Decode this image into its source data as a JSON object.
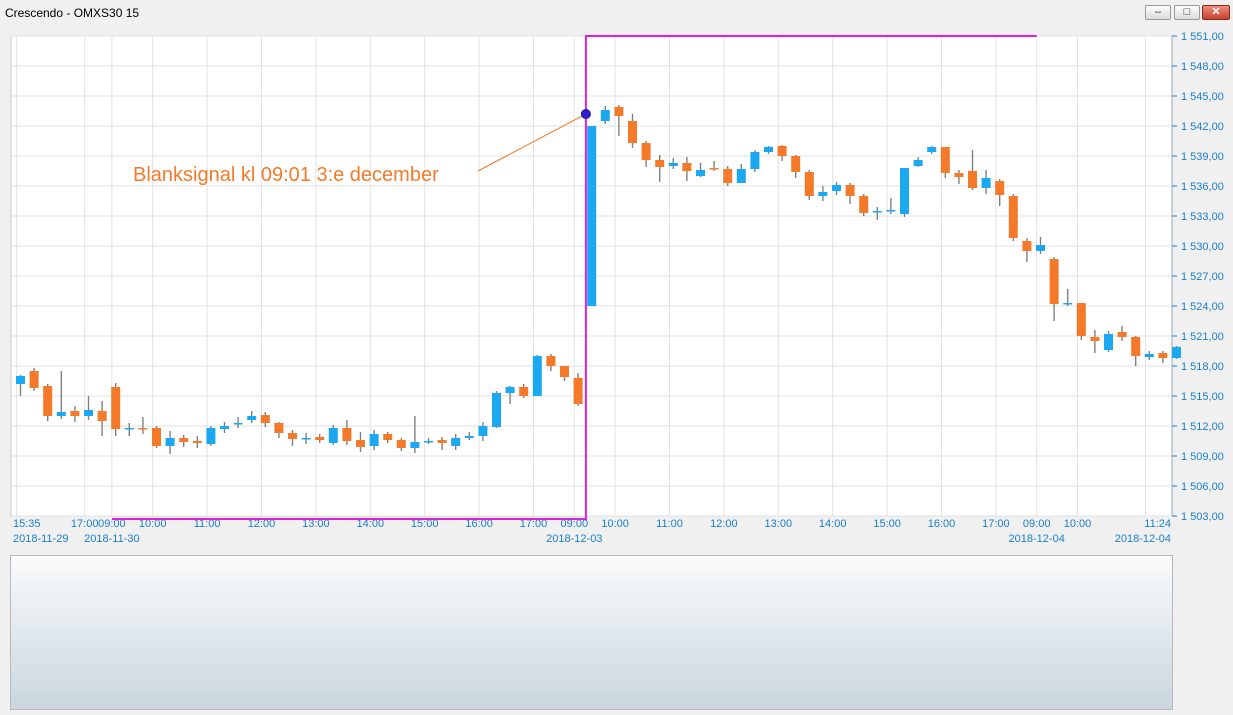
{
  "window": {
    "title": "Crescendo - OMXS30  15",
    "minimize_label": "–",
    "maximize_label": "□",
    "close_label": "✕"
  },
  "colors": {
    "up": "#1aa8f0",
    "down": "#f47a2a",
    "wick": "#808080",
    "marker_line": "#e020d8",
    "annotation": "#f47a2a",
    "axis_text": "#1a7fc8",
    "grid": "#e2e2e2"
  },
  "chart_data": {
    "type": "candlestick",
    "ylim": [
      1503,
      1551
    ],
    "y_ticks": [
      "1 503,00",
      "1 506,00",
      "1 509,00",
      "1 512,00",
      "1 515,00",
      "1 518,00",
      "1 521,00",
      "1 524,00",
      "1 527,00",
      "1 530,00",
      "1 533,00",
      "1 536,00",
      "1 539,00",
      "1 542,00",
      "1 545,00",
      "1 548,00",
      "1 551,00"
    ],
    "x_ticks": [
      {
        "time": "15:35",
        "date": "2018-11-29",
        "bar": 0
      },
      {
        "time": "17:00",
        "date": "",
        "bar": 5
      },
      {
        "time": "09:00",
        "date": "2018-11-30",
        "bar": 7
      },
      {
        "time": "10:00",
        "date": "",
        "bar": 10
      },
      {
        "time": "11:00",
        "date": "",
        "bar": 14
      },
      {
        "time": "12:00",
        "date": "",
        "bar": 18
      },
      {
        "time": "13:00",
        "date": "",
        "bar": 22
      },
      {
        "time": "14:00",
        "date": "",
        "bar": 26
      },
      {
        "time": "15:00",
        "date": "",
        "bar": 30
      },
      {
        "time": "16:00",
        "date": "",
        "bar": 34
      },
      {
        "time": "17:00",
        "date": "",
        "bar": 38
      },
      {
        "time": "09:00",
        "date": "2018-12-03",
        "bar": 41
      },
      {
        "time": "10:00",
        "date": "",
        "bar": 44
      },
      {
        "time": "11:00",
        "date": "",
        "bar": 48
      },
      {
        "time": "12:00",
        "date": "",
        "bar": 52
      },
      {
        "time": "13:00",
        "date": "",
        "bar": 56
      },
      {
        "time": "14:00",
        "date": "",
        "bar": 60
      },
      {
        "time": "15:00",
        "date": "",
        "bar": 64
      },
      {
        "time": "16:00",
        "date": "",
        "bar": 68
      },
      {
        "time": "17:00",
        "date": "",
        "bar": 72
      },
      {
        "time": "09:00",
        "date": "2018-12-04",
        "bar": 75
      },
      {
        "time": "10:00",
        "date": "",
        "bar": 78
      },
      {
        "time": "11:24",
        "date": "2018-12-04",
        "bar": 83
      }
    ],
    "bars": [
      [
        1516.2,
        1517.0,
        1515.0,
        1517.1
      ],
      [
        1517.5,
        1515.8,
        1515.5,
        1517.8
      ],
      [
        1516.0,
        1513.0,
        1512.5,
        1516.2
      ],
      [
        1513.0,
        1513.4,
        1512.7,
        1517.5
      ],
      [
        1513.5,
        1513.0,
        1512.4,
        1514.0
      ],
      [
        1513.0,
        1513.6,
        1512.6,
        1515.0
      ],
      [
        1513.5,
        1512.5,
        1511.0,
        1514.5
      ],
      [
        1515.9,
        1511.7,
        1511.0,
        1516.3
      ],
      [
        1511.7,
        1511.8,
        1511.0,
        1512.3
      ],
      [
        1511.8,
        1511.7,
        1511.2,
        1512.9
      ],
      [
        1511.8,
        1510.0,
        1509.8,
        1512.0
      ],
      [
        1510.0,
        1510.8,
        1509.2,
        1511.5
      ],
      [
        1510.8,
        1510.4,
        1509.9,
        1511.1
      ],
      [
        1510.5,
        1510.3,
        1509.8,
        1511.0
      ],
      [
        1510.2,
        1511.8,
        1510.0,
        1512.0
      ],
      [
        1511.7,
        1512.0,
        1511.3,
        1512.4
      ],
      [
        1512.2,
        1512.3,
        1511.8,
        1512.9
      ],
      [
        1512.6,
        1513.0,
        1512.3,
        1513.5
      ],
      [
        1513.1,
        1512.3,
        1511.9,
        1513.4
      ],
      [
        1512.3,
        1511.3,
        1510.8,
        1512.4
      ],
      [
        1511.3,
        1510.7,
        1510.0,
        1511.6
      ],
      [
        1510.8,
        1510.8,
        1510.2,
        1511.3
      ],
      [
        1510.9,
        1510.6,
        1510.3,
        1511.2
      ],
      [
        1510.3,
        1511.8,
        1510.1,
        1512.1
      ],
      [
        1511.8,
        1510.5,
        1510.1,
        1512.6
      ],
      [
        1510.6,
        1509.9,
        1509.4,
        1511.4
      ],
      [
        1510.0,
        1511.2,
        1509.6,
        1511.6
      ],
      [
        1511.2,
        1510.6,
        1510.3,
        1511.4
      ],
      [
        1510.6,
        1509.8,
        1509.5,
        1510.8
      ],
      [
        1509.8,
        1510.4,
        1509.3,
        1513.0
      ],
      [
        1510.5,
        1510.5,
        1510.2,
        1510.8
      ],
      [
        1510.6,
        1510.3,
        1509.6,
        1510.9
      ],
      [
        1510.0,
        1510.8,
        1509.6,
        1511.2
      ],
      [
        1510.8,
        1511.0,
        1510.6,
        1511.4
      ],
      [
        1511.0,
        1512.0,
        1510.5,
        1512.4
      ],
      [
        1511.9,
        1515.3,
        1511.8,
        1515.5
      ],
      [
        1515.3,
        1515.9,
        1514.2,
        1516.0
      ],
      [
        1515.9,
        1515.0,
        1514.8,
        1516.2
      ],
      [
        1515.0,
        1519.0,
        1515.0,
        1519.1
      ],
      [
        1519.0,
        1518.0,
        1517.5,
        1519.2
      ],
      [
        1518.0,
        1516.9,
        1516.5,
        1518.0
      ],
      [
        1516.8,
        1514.2,
        1514.0,
        1517.3
      ],
      [
        1524.0,
        1542.0,
        1524.0,
        1542.0
      ],
      [
        1542.5,
        1543.6,
        1542.2,
        1544.0
      ],
      [
        1543.9,
        1543.0,
        1541.0,
        1544.1
      ],
      [
        1542.5,
        1540.3,
        1539.8,
        1543.2
      ],
      [
        1540.3,
        1538.6,
        1537.9,
        1540.5
      ],
      [
        1538.6,
        1537.9,
        1536.4,
        1539.1
      ],
      [
        1538.0,
        1538.3,
        1537.7,
        1538.8
      ],
      [
        1538.3,
        1537.5,
        1536.5,
        1538.9
      ],
      [
        1537.0,
        1537.6,
        1536.9,
        1538.3
      ],
      [
        1537.8,
        1537.7,
        1537.5,
        1538.5
      ],
      [
        1537.7,
        1536.3,
        1536.0,
        1538.0
      ],
      [
        1536.3,
        1537.7,
        1536.3,
        1538.2
      ],
      [
        1537.7,
        1539.4,
        1537.4,
        1539.6
      ],
      [
        1539.4,
        1539.9,
        1539.2,
        1540.0
      ],
      [
        1540.0,
        1539.0,
        1538.5,
        1540.1
      ],
      [
        1539.0,
        1537.4,
        1536.8,
        1539.1
      ],
      [
        1537.4,
        1535.0,
        1534.6,
        1537.6
      ],
      [
        1535.0,
        1535.4,
        1534.5,
        1536.0
      ],
      [
        1535.5,
        1536.1,
        1535.1,
        1536.4
      ],
      [
        1536.1,
        1535.0,
        1534.2,
        1536.3
      ],
      [
        1535.0,
        1533.3,
        1533.0,
        1535.2
      ],
      [
        1533.4,
        1533.5,
        1532.6,
        1533.9
      ],
      [
        1533.5,
        1533.6,
        1533.2,
        1534.8
      ],
      [
        1533.2,
        1537.8,
        1532.9,
        1537.8
      ],
      [
        1538.0,
        1538.6,
        1537.9,
        1538.9
      ],
      [
        1539.4,
        1539.9,
        1539.2,
        1540.0
      ],
      [
        1539.9,
        1537.3,
        1536.8,
        1539.9
      ],
      [
        1537.3,
        1536.9,
        1536.2,
        1537.6
      ],
      [
        1537.5,
        1535.8,
        1535.6,
        1539.6
      ],
      [
        1535.8,
        1536.8,
        1535.2,
        1537.6
      ],
      [
        1536.5,
        1535.1,
        1534.0,
        1536.7
      ],
      [
        1535.0,
        1530.8,
        1530.5,
        1535.2
      ],
      [
        1530.5,
        1529.5,
        1528.4,
        1530.8
      ],
      [
        1529.5,
        1530.1,
        1529.2,
        1530.9
      ],
      [
        1528.7,
        1524.2,
        1522.5,
        1528.9
      ],
      [
        1524.2,
        1524.3,
        1524.0,
        1525.7
      ],
      [
        1524.3,
        1521.0,
        1520.6,
        1524.3
      ],
      [
        1520.9,
        1520.5,
        1519.3,
        1521.6
      ],
      [
        1519.6,
        1521.2,
        1519.4,
        1521.5
      ],
      [
        1521.4,
        1520.9,
        1520.5,
        1522.0
      ],
      [
        1520.9,
        1519.0,
        1518.0,
        1521.0
      ],
      [
        1518.9,
        1519.2,
        1518.6,
        1519.5
      ],
      [
        1519.3,
        1518.8,
        1518.3,
        1519.5
      ],
      [
        1518.8,
        1519.9,
        1518.7,
        1520.0
      ]
    ],
    "signal_bar": 42,
    "signal_price": 1543.2,
    "signal_top_price": 1551.0,
    "prior_line_price": 1502.7,
    "prior_line_start_bar": 7,
    "annotation": "Blanksignal kl 09:01 3:e december"
  }
}
